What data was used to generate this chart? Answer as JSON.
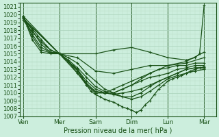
{
  "xlabel": "Pression niveau de la mer( hPa )",
  "ylim": [
    1007,
    1021.5
  ],
  "yticks": [
    1007,
    1008,
    1009,
    1010,
    1011,
    1012,
    1013,
    1014,
    1015,
    1016,
    1017,
    1018,
    1019,
    1020,
    1021
  ],
  "xtick_labels": [
    "Ven",
    "Mer",
    "Sam",
    "Dim",
    "Lun",
    "Mar"
  ],
  "xtick_positions": [
    0,
    24,
    48,
    72,
    96,
    120
  ],
  "xlim": [
    -2,
    128
  ],
  "bg_color": "#cceedd",
  "line_color": "#1a5218",
  "grid_major_color": "#aad4bb",
  "grid_minor_color": "#bbddc8",
  "vline_color": "#336633",
  "lines": [
    {
      "pts": [
        [
          0,
          1019.3
        ],
        [
          3,
          1018.5
        ],
        [
          6,
          1017.8
        ],
        [
          9,
          1017.2
        ],
        [
          12,
          1016.5
        ],
        [
          15,
          1016.0
        ],
        [
          18,
          1015.5
        ],
        [
          21,
          1015.2
        ],
        [
          24,
          1015.0
        ],
        [
          27,
          1014.5
        ],
        [
          30,
          1014.0
        ],
        [
          33,
          1013.5
        ],
        [
          36,
          1013.0
        ],
        [
          39,
          1012.0
        ],
        [
          42,
          1011.0
        ],
        [
          45,
          1010.2
        ],
        [
          48,
          1009.8
        ],
        [
          51,
          1009.5
        ],
        [
          54,
          1009.2
        ],
        [
          57,
          1009.0
        ],
        [
          60,
          1008.8
        ],
        [
          63,
          1008.5
        ],
        [
          66,
          1008.2
        ],
        [
          69,
          1008.0
        ],
        [
          72,
          1007.8
        ],
        [
          75,
          1007.5
        ],
        [
          78,
          1007.8
        ],
        [
          81,
          1008.5
        ],
        [
          84,
          1009.0
        ],
        [
          87,
          1009.8
        ],
        [
          90,
          1010.5
        ],
        [
          93,
          1011.0
        ],
        [
          96,
          1011.5
        ],
        [
          99,
          1011.8
        ],
        [
          102,
          1012.0
        ],
        [
          105,
          1012.2
        ],
        [
          108,
          1012.5
        ],
        [
          111,
          1012.8
        ],
        [
          114,
          1013.0
        ],
        [
          117,
          1013.2
        ],
        [
          120,
          1013.3
        ]
      ]
    },
    {
      "pts": [
        [
          0,
          1019.5
        ],
        [
          6,
          1018.2
        ],
        [
          12,
          1016.8
        ],
        [
          18,
          1015.5
        ],
        [
          24,
          1015.0
        ],
        [
          30,
          1014.5
        ],
        [
          36,
          1013.8
        ],
        [
          42,
          1012.5
        ],
        [
          48,
          1011.5
        ],
        [
          54,
          1010.5
        ],
        [
          60,
          1010.0
        ],
        [
          66,
          1009.5
        ],
        [
          72,
          1009.2
        ],
        [
          78,
          1009.5
        ],
        [
          84,
          1010.2
        ],
        [
          90,
          1011.0
        ],
        [
          96,
          1011.8
        ],
        [
          102,
          1012.2
        ],
        [
          108,
          1012.5
        ],
        [
          114,
          1012.8
        ],
        [
          120,
          1013.0
        ]
      ]
    },
    {
      "pts": [
        [
          0,
          1019.7
        ],
        [
          6,
          1018.0
        ],
        [
          12,
          1016.2
        ],
        [
          18,
          1015.2
        ],
        [
          24,
          1015.0
        ],
        [
          30,
          1014.2
        ],
        [
          36,
          1013.2
        ],
        [
          42,
          1012.0
        ],
        [
          48,
          1010.8
        ],
        [
          54,
          1010.2
        ],
        [
          60,
          1009.8
        ],
        [
          66,
          1009.5
        ],
        [
          72,
          1009.5
        ],
        [
          78,
          1010.0
        ],
        [
          84,
          1010.8
        ],
        [
          90,
          1011.5
        ],
        [
          96,
          1012.0
        ],
        [
          102,
          1012.5
        ],
        [
          108,
          1013.0
        ],
        [
          114,
          1013.2
        ],
        [
          120,
          1013.2
        ]
      ]
    },
    {
      "pts": [
        [
          0,
          1019.8
        ],
        [
          6,
          1017.5
        ],
        [
          12,
          1015.8
        ],
        [
          18,
          1015.2
        ],
        [
          24,
          1015.0
        ],
        [
          30,
          1014.0
        ],
        [
          36,
          1013.0
        ],
        [
          42,
          1011.5
        ],
        [
          48,
          1010.5
        ],
        [
          54,
          1010.0
        ],
        [
          60,
          1009.8
        ],
        [
          66,
          1010.0
        ],
        [
          72,
          1010.2
        ],
        [
          78,
          1010.5
        ],
        [
          84,
          1011.0
        ],
        [
          90,
          1011.5
        ],
        [
          96,
          1012.0
        ],
        [
          102,
          1012.5
        ],
        [
          108,
          1013.0
        ],
        [
          114,
          1013.2
        ],
        [
          120,
          1013.2
        ]
      ]
    },
    {
      "pts": [
        [
          0,
          1019.8
        ],
        [
          6,
          1017.2
        ],
        [
          12,
          1015.5
        ],
        [
          18,
          1015.1
        ],
        [
          24,
          1015.0
        ],
        [
          30,
          1014.0
        ],
        [
          36,
          1012.8
        ],
        [
          42,
          1011.2
        ],
        [
          48,
          1010.2
        ],
        [
          54,
          1010.0
        ],
        [
          60,
          1010.0
        ],
        [
          66,
          1010.5
        ],
        [
          72,
          1011.0
        ],
        [
          78,
          1011.5
        ],
        [
          84,
          1012.0
        ],
        [
          90,
          1012.2
        ],
        [
          96,
          1012.5
        ],
        [
          102,
          1013.0
        ],
        [
          108,
          1013.2
        ],
        [
          114,
          1013.5
        ],
        [
          120,
          1013.5
        ]
      ]
    },
    {
      "pts": [
        [
          0,
          1019.8
        ],
        [
          6,
          1016.8
        ],
        [
          12,
          1015.2
        ],
        [
          18,
          1015.0
        ],
        [
          24,
          1015.0
        ],
        [
          30,
          1014.0
        ],
        [
          36,
          1012.5
        ],
        [
          42,
          1011.0
        ],
        [
          48,
          1010.0
        ],
        [
          54,
          1010.0
        ],
        [
          60,
          1010.5
        ],
        [
          66,
          1011.0
        ],
        [
          72,
          1011.5
        ],
        [
          78,
          1012.0
        ],
        [
          84,
          1012.5
        ],
        [
          90,
          1013.0
        ],
        [
          96,
          1013.2
        ],
        [
          102,
          1013.5
        ],
        [
          108,
          1013.5
        ],
        [
          114,
          1013.8
        ],
        [
          120,
          1013.8
        ]
      ]
    },
    {
      "pts": [
        [
          0,
          1019.8
        ],
        [
          24,
          1015.0
        ],
        [
          48,
          1010.0
        ],
        [
          60,
          1010.0
        ],
        [
          72,
          1011.0
        ],
        [
          84,
          1012.5
        ],
        [
          96,
          1013.5
        ],
        [
          108,
          1013.8
        ],
        [
          120,
          1014.5
        ]
      ]
    },
    {
      "pts": [
        [
          0,
          1019.5
        ],
        [
          24,
          1015.0
        ],
        [
          36,
          1014.5
        ],
        [
          48,
          1012.8
        ],
        [
          60,
          1012.5
        ],
        [
          72,
          1013.0
        ],
        [
          84,
          1013.5
        ],
        [
          96,
          1013.5
        ],
        [
          108,
          1014.0
        ],
        [
          120,
          1015.2
        ]
      ]
    },
    {
      "pts": [
        [
          0,
          1019.5
        ],
        [
          24,
          1015.0
        ],
        [
          48,
          1015.0
        ],
        [
          60,
          1015.5
        ],
        [
          72,
          1015.8
        ],
        [
          84,
          1015.2
        ],
        [
          96,
          1014.5
        ],
        [
          108,
          1014.2
        ],
        [
          114,
          1014.5
        ],
        [
          117,
          1015.0
        ],
        [
          120,
          1021.2
        ]
      ]
    }
  ]
}
